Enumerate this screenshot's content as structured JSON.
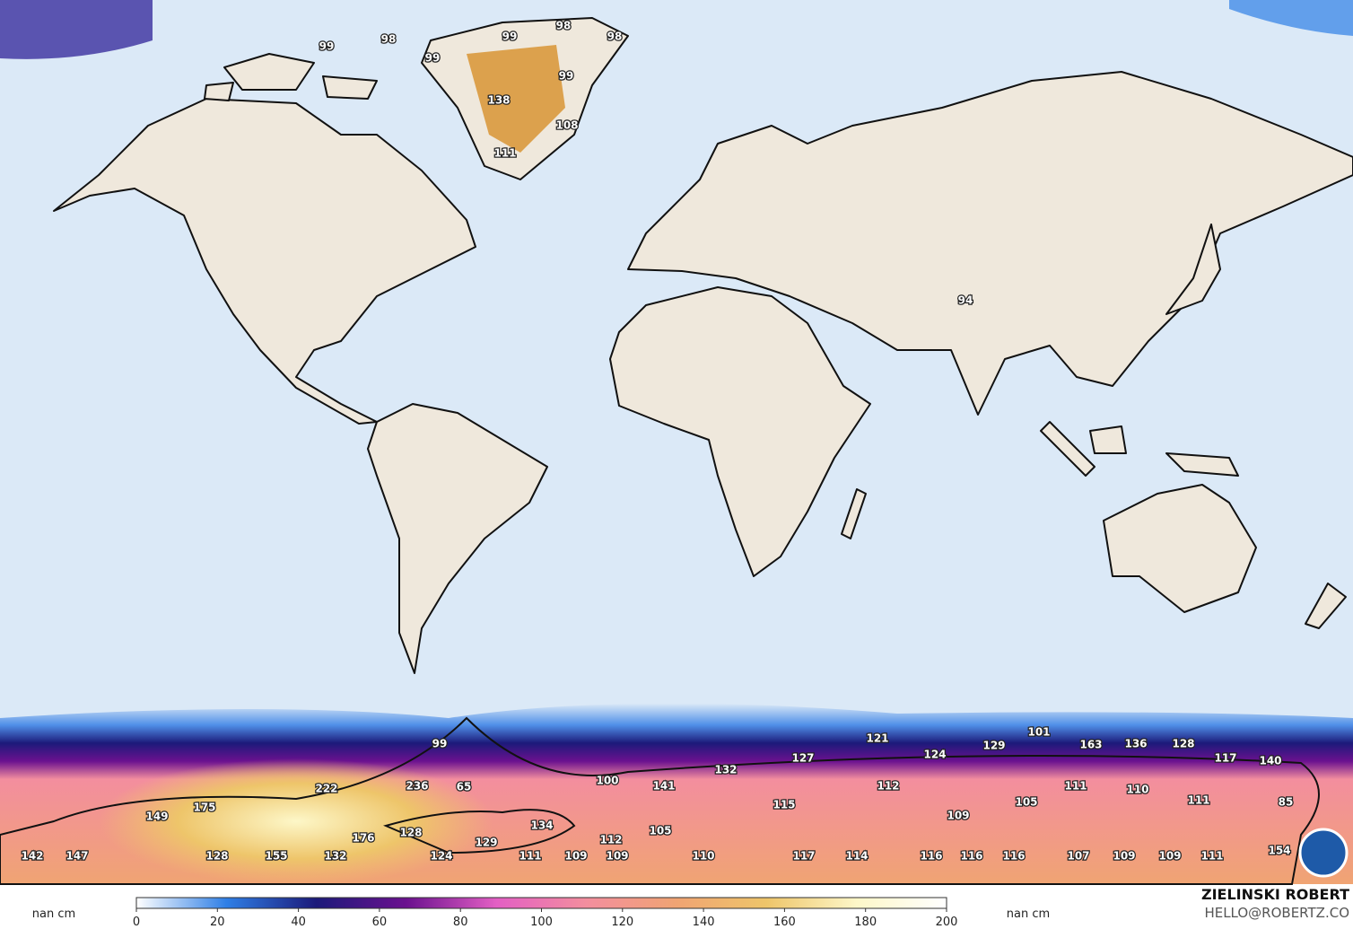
{
  "map": {
    "labels": [
      99,
      98,
      99,
      99,
      98,
      98,
      99,
      138,
      108,
      111,
      94,
      99,
      101,
      121,
      129,
      163,
      136,
      128,
      124,
      117,
      140,
      132,
      127,
      100,
      141,
      112,
      222,
      236,
      65,
      111,
      110,
      105,
      111,
      85,
      115,
      149,
      175,
      109,
      134,
      105,
      128,
      176,
      129,
      112,
      142,
      147,
      128,
      155,
      132,
      124,
      111,
      109,
      109,
      110,
      117,
      114,
      116,
      116,
      116,
      107,
      109,
      109,
      111,
      154
    ],
    "colorbar": {
      "unit_left": "nan cm",
      "unit_right": "nan cm",
      "range": [
        0,
        200
      ],
      "ticks": [
        0,
        20,
        40,
        60,
        80,
        100,
        120,
        140,
        160,
        180,
        200
      ],
      "colors": [
        "#ffffff",
        "#2f7fe6",
        "#1c1a7a",
        "#6b118f",
        "#e35fc4",
        "#f38e9e",
        "#f0a473",
        "#eec56a",
        "#fdf7c8",
        "#ffffff"
      ]
    },
    "credit": {
      "name": "ZIELINSKI ROBERT",
      "email": "HELLO@ROBERTZ.CO"
    }
  }
}
